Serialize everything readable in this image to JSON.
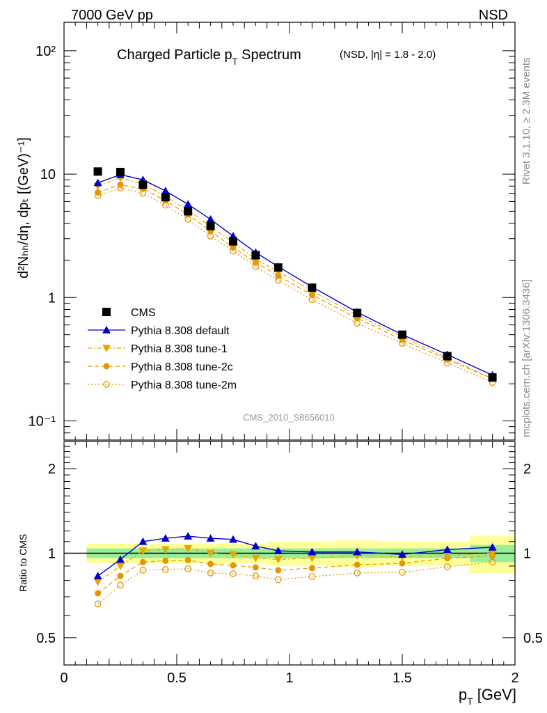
{
  "header": {
    "left": "7000 GeV pp",
    "right": "NSD",
    "side_rivet": "Rivet 3.1.10, ≥ 2.3M events",
    "side_mcplots": "mcplots.cern.ch [arXiv:1306.3436]",
    "analysis_id": "CMS_2010_S8656010"
  },
  "title": {
    "main": "Charged Particle p",
    "main_sub": "T",
    "main_after": " Spectrum",
    "qualifier": "(NSD, |η| = 1.8 - 2.0)"
  },
  "axes": {
    "ylabel_main": "d²Nₕₕ/dη, dpₜ [(GeV)⁻¹]",
    "ylabel_ratio": "Ratio to CMS",
    "xlabel": "p",
    "xlabel_sub": "T",
    "xlabel_after": " [GeV]",
    "xticks": [
      "0",
      "0.5",
      "1",
      "1.5",
      "2"
    ],
    "yticks_main": [
      "10⁻¹",
      "1",
      "10",
      "10²"
    ],
    "yticks_ratio": [
      "0.5",
      "1",
      "2"
    ]
  },
  "legend": [
    {
      "label": "CMS",
      "color": "#000000",
      "marker": "square",
      "dash": "none"
    },
    {
      "label": "Pythia 8.308 default",
      "color": "#0000cc",
      "marker": "triangle-up",
      "dash": "solid"
    },
    {
      "label": "Pythia 8.308 tune-1",
      "color": "#e6a800",
      "marker": "triangle-down",
      "dash": "dashdot"
    },
    {
      "label": "Pythia 8.308 tune-2c",
      "color": "#e69500",
      "marker": "circle",
      "dash": "dashed"
    },
    {
      "label": "Pythia 8.308 tune-2m",
      "color": "#e69500",
      "marker": "circle-open",
      "dash": "dotted"
    }
  ],
  "chart_data": [
    {
      "type": "line",
      "panel": "main",
      "yscale": "log",
      "xlim": [
        0,
        2
      ],
      "ylim": [
        0.07,
        170
      ],
      "x": [
        0.15,
        0.25,
        0.35,
        0.45,
        0.55,
        0.65,
        0.75,
        0.85,
        0.95,
        1.1,
        1.3,
        1.5,
        1.7,
        1.9
      ],
      "series": [
        {
          "name": "CMS",
          "values": [
            10.5,
            10.4,
            8.2,
            6.5,
            5.0,
            3.8,
            2.85,
            2.2,
            1.75,
            1.2,
            0.75,
            0.5,
            0.335,
            0.225
          ]
        },
        {
          "name": "Pythia 8.308 default",
          "values": [
            8.5,
            9.9,
            9.0,
            7.3,
            5.7,
            4.3,
            3.15,
            2.32,
            1.78,
            1.22,
            0.76,
            0.5,
            0.345,
            0.235
          ]
        },
        {
          "name": "Pythia 8.308 tune-1",
          "values": [
            8.0,
            9.3,
            8.3,
            6.6,
            5.1,
            3.75,
            2.8,
            2.05,
            1.62,
            1.13,
            0.72,
            0.48,
            0.325,
            0.22
          ]
        },
        {
          "name": "Pythia 8.308 tune-2c",
          "values": [
            7.1,
            8.2,
            7.6,
            6.1,
            4.7,
            3.45,
            2.55,
            1.92,
            1.5,
            1.05,
            0.68,
            0.455,
            0.315,
            0.22
          ]
        },
        {
          "name": "Pythia 8.308 tune-2m",
          "values": [
            6.7,
            7.7,
            7.0,
            5.6,
            4.3,
            3.15,
            2.38,
            1.78,
            1.38,
            0.96,
            0.62,
            0.425,
            0.295,
            0.205
          ]
        }
      ]
    },
    {
      "type": "line",
      "panel": "ratio",
      "yscale": "log",
      "xlim": [
        0,
        2
      ],
      "ylim": [
        0.4,
        2.5
      ],
      "x": [
        0.15,
        0.25,
        0.35,
        0.45,
        0.55,
        0.65,
        0.75,
        0.85,
        0.95,
        1.1,
        1.3,
        1.5,
        1.7,
        1.9
      ],
      "bands": {
        "bin_edges": [
          0.1,
          0.2,
          0.3,
          0.4,
          0.5,
          0.6,
          0.7,
          0.8,
          0.9,
          1.0,
          1.2,
          1.4,
          1.6,
          1.8,
          2.0
        ],
        "green_half_width": [
          0.04,
          0.04,
          0.04,
          0.04,
          0.04,
          0.04,
          0.04,
          0.04,
          0.04,
          0.04,
          0.04,
          0.04,
          0.04,
          0.07
        ],
        "yellow_half_width": [
          0.08,
          0.08,
          0.08,
          0.08,
          0.08,
          0.08,
          0.08,
          0.08,
          0.1,
          0.1,
          0.11,
          0.1,
          0.1,
          0.15
        ]
      },
      "series": [
        {
          "name": "Pythia 8.308 default",
          "values": [
            0.83,
            0.95,
            1.1,
            1.13,
            1.15,
            1.13,
            1.12,
            1.06,
            1.02,
            1.01,
            1.01,
            0.99,
            1.03,
            1.05
          ]
        },
        {
          "name": "Pythia 8.308 tune-1",
          "values": [
            0.79,
            0.9,
            1.02,
            1.03,
            1.04,
            1.0,
            0.99,
            0.96,
            0.95,
            0.96,
            0.98,
            0.97,
            0.98,
            1.0
          ]
        },
        {
          "name": "Pythia 8.308 tune-2c",
          "values": [
            0.72,
            0.83,
            0.93,
            0.94,
            0.945,
            0.915,
            0.905,
            0.89,
            0.87,
            0.885,
            0.91,
            0.92,
            0.96,
            0.98
          ]
        },
        {
          "name": "Pythia 8.308 tune-2m",
          "values": [
            0.66,
            0.77,
            0.87,
            0.875,
            0.88,
            0.85,
            0.845,
            0.83,
            0.805,
            0.825,
            0.85,
            0.855,
            0.895,
            0.93
          ]
        }
      ]
    }
  ]
}
